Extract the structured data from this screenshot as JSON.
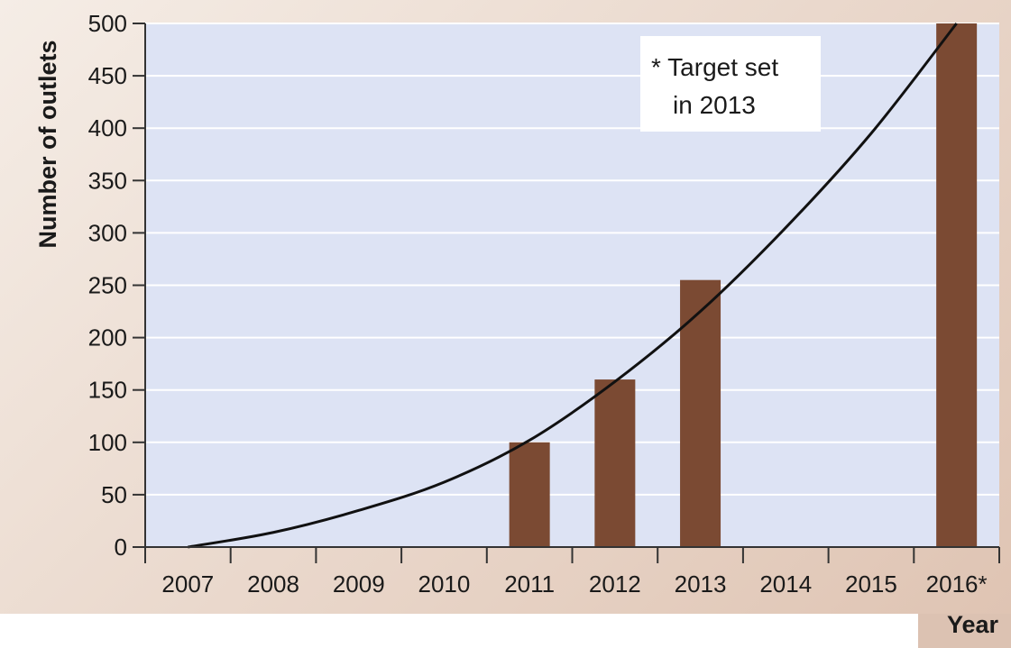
{
  "chart_data": {
    "type": "bar",
    "categories": [
      "2007",
      "2008",
      "2009",
      "2010",
      "2011",
      "2012",
      "2013",
      "2014",
      "2015",
      "2016*"
    ],
    "values": [
      0,
      0,
      0,
      0,
      100,
      160,
      255,
      0,
      0,
      500
    ],
    "trend_line": {
      "x": [
        "2007",
        "2008",
        "2009",
        "2010",
        "2011",
        "2012",
        "2013",
        "2014",
        "2015",
        "2016*"
      ],
      "values": [
        0,
        14,
        35,
        62,
        102,
        158,
        225,
        305,
        395,
        500
      ]
    },
    "xlabel": "Year",
    "ylabel": "Number of outlets",
    "ylim": [
      0,
      500
    ],
    "yticks": [
      0,
      50,
      100,
      150,
      200,
      250,
      300,
      350,
      400,
      450,
      500
    ],
    "annotation": [
      "* Target set",
      "in 2013"
    ],
    "grid": "horizontal",
    "colors": {
      "bar": "#7b4a33",
      "plot_background": "#dde3f4",
      "gridline": "#ffffff",
      "trend_line": "#111111",
      "annotation_box": "#ffffff"
    }
  }
}
